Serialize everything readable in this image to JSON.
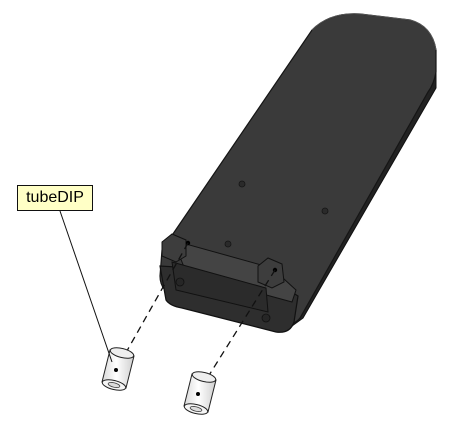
{
  "callout": {
    "label": "tubeDIP"
  },
  "colors": {
    "background": "#ffffff",
    "part_body": "#3a3a3a",
    "part_edge": "#1a1a1a",
    "callout_fill": "#ffffc6"
  }
}
